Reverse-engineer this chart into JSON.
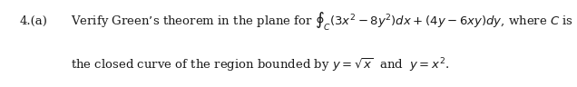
{
  "label": "4.(a)",
  "line1_pre": "Verify Green’s theorem in the plane for ",
  "line1_math": "$\\oint_C(3x^2-8y^2)dx+(4y-6xy)dy$",
  "line1_post": ", where $C$ is",
  "line2": "the closed curve of the region bounded by $y=\\sqrt{x}$  and  $y=x^2$.",
  "fontsize": 9.5,
  "bg_color": "#ffffff",
  "text_color": "#1a1a1a",
  "fig_width": 6.36,
  "fig_height": 0.96,
  "dpi": 100
}
